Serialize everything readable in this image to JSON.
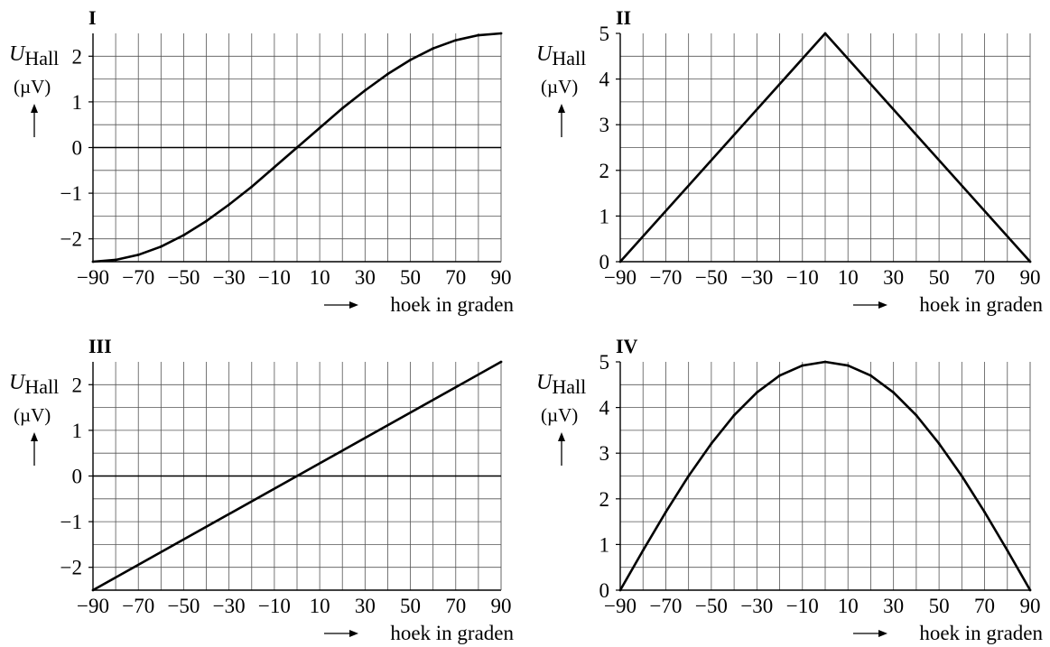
{
  "chart_data": [
    {
      "panel": "I",
      "type": "line",
      "ylabel_main": "U",
      "ylabel_sub": "Hall",
      "yunit": "(µV)",
      "xlabel": "hoek in graden",
      "xlim": [
        -90,
        90
      ],
      "ylim": [
        -2.5,
        2.5
      ],
      "xticks": [
        -90,
        -70,
        -50,
        -30,
        -10,
        10,
        30,
        50,
        70,
        90
      ],
      "yticks": [
        -2,
        -1,
        0,
        1,
        2
      ],
      "grid": true,
      "zero_line": true,
      "series": [
        {
          "x": [
            -90,
            -80,
            -70,
            -60,
            -50,
            -40,
            -30,
            -20,
            -10,
            0,
            10,
            20,
            30,
            40,
            50,
            60,
            70,
            80,
            90
          ],
          "y": [
            -2.5,
            -2.46,
            -2.35,
            -2.17,
            -1.92,
            -1.61,
            -1.25,
            -0.86,
            -0.43,
            0,
            0.43,
            0.86,
            1.25,
            1.61,
            1.92,
            2.17,
            2.35,
            2.46,
            2.5
          ]
        }
      ]
    },
    {
      "panel": "II",
      "type": "line",
      "ylabel_main": "U",
      "ylabel_sub": "Hall",
      "yunit": "(µV)",
      "xlabel": "hoek in graden",
      "xlim": [
        -90,
        90
      ],
      "ylim": [
        0,
        5
      ],
      "xticks": [
        -90,
        -70,
        -50,
        -30,
        -10,
        10,
        30,
        50,
        70,
        90
      ],
      "yticks": [
        0,
        1,
        2,
        3,
        4,
        5
      ],
      "grid": true,
      "zero_line": false,
      "series": [
        {
          "x": [
            -90,
            0,
            90
          ],
          "y": [
            0,
            5,
            0
          ]
        }
      ]
    },
    {
      "panel": "III",
      "type": "line",
      "ylabel_main": "U",
      "ylabel_sub": "Hall",
      "yunit": "(µV)",
      "xlabel": "hoek in graden",
      "xlim": [
        -90,
        90
      ],
      "ylim": [
        -2.5,
        2.5
      ],
      "xticks": [
        -90,
        -70,
        -50,
        -30,
        -10,
        10,
        30,
        50,
        70,
        90
      ],
      "yticks": [
        -2,
        -1,
        0,
        1,
        2
      ],
      "grid": true,
      "zero_line": true,
      "series": [
        {
          "x": [
            -90,
            90
          ],
          "y": [
            -2.5,
            2.5
          ]
        }
      ]
    },
    {
      "panel": "IV",
      "type": "line",
      "ylabel_main": "U",
      "ylabel_sub": "Hall",
      "yunit": "(µV)",
      "xlabel": "hoek in graden",
      "xlim": [
        -90,
        90
      ],
      "ylim": [
        0,
        5
      ],
      "xticks": [
        -90,
        -70,
        -50,
        -30,
        -10,
        10,
        30,
        50,
        70,
        90
      ],
      "yticks": [
        0,
        1,
        2,
        3,
        4,
        5
      ],
      "grid": true,
      "zero_line": false,
      "series": [
        {
          "x": [
            -90,
            -80,
            -70,
            -60,
            -50,
            -40,
            -30,
            -20,
            -10,
            0,
            10,
            20,
            30,
            40,
            50,
            60,
            70,
            80,
            90
          ],
          "y": [
            0,
            0.87,
            1.71,
            2.5,
            3.21,
            3.83,
            4.33,
            4.7,
            4.92,
            5,
            4.92,
            4.7,
            4.33,
            3.83,
            3.21,
            2.5,
            1.71,
            0.87,
            0
          ]
        }
      ]
    }
  ]
}
